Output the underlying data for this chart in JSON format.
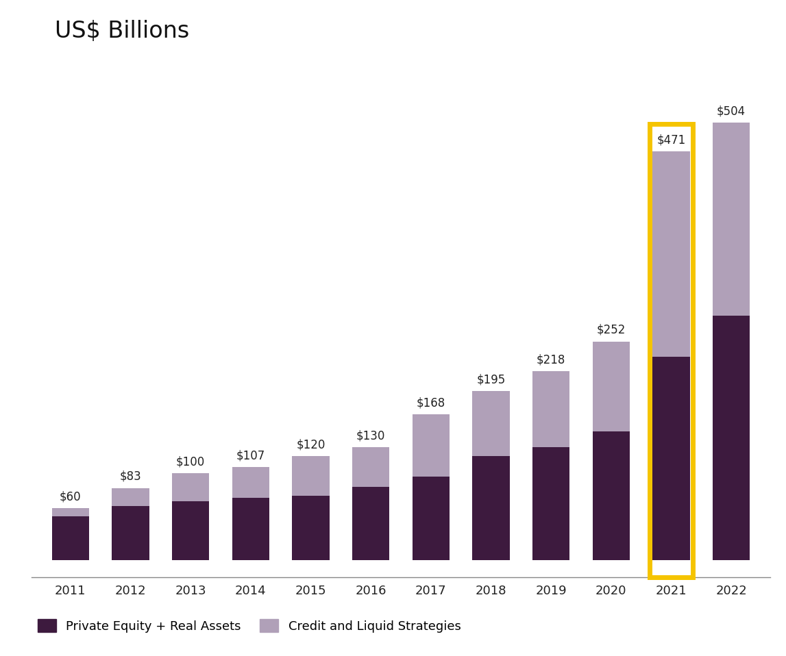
{
  "years": [
    "2011",
    "2012",
    "2013",
    "2014",
    "2015",
    "2016",
    "2017",
    "2018",
    "2019",
    "2020",
    "2021",
    "2022"
  ],
  "totals": [
    60,
    83,
    100,
    107,
    120,
    130,
    168,
    195,
    218,
    252,
    471,
    504
  ],
  "pe_real_assets": [
    50,
    62,
    68,
    72,
    74,
    84,
    96,
    120,
    130,
    148,
    234,
    282
  ],
  "credit_liquid": [
    10,
    21,
    32,
    35,
    46,
    46,
    72,
    75,
    88,
    104,
    237,
    222
  ],
  "color_pe": "#3d1a3e",
  "color_credit": "#b0a0b8",
  "color_highlight": "#f5c400",
  "title": "US$ Billions",
  "highlight_year": "2021",
  "legend_pe": "Private Equity + Real Assets",
  "legend_credit": "Credit and Liquid Strategies",
  "background_color": "#ffffff",
  "ylim_max": 570,
  "bar_width": 0.62
}
